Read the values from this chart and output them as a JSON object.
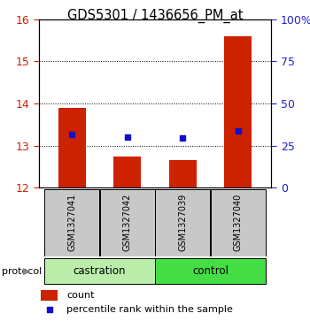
{
  "title": "GDS5301 / 1436656_PM_at",
  "samples": [
    "GSM1327041",
    "GSM1327042",
    "GSM1327039",
    "GSM1327040"
  ],
  "bar_bottom": 12,
  "bar_tops": [
    13.9,
    12.75,
    12.65,
    15.6
  ],
  "percentile_values": [
    13.27,
    13.2,
    13.18,
    13.35
  ],
  "ylim_left": [
    12,
    16
  ],
  "ylim_right": [
    0,
    100
  ],
  "yticks_left": [
    12,
    13,
    14,
    15,
    16
  ],
  "yticks_right": [
    0,
    25,
    50,
    75,
    100
  ],
  "ytick_labels_right": [
    "0",
    "25",
    "50",
    "75",
    "100%"
  ],
  "bar_color": "#CC2200",
  "dot_color": "#1111CC",
  "left_tick_color": "#CC2200",
  "right_tick_color": "#2222CC",
  "sample_box_color": "#C8C8C8",
  "castration_color": "#BBEEAA",
  "control_color": "#55DD55",
  "legend_count_color": "#CC2200",
  "legend_dot_color": "#1111CC",
  "grid_dotted_color": "#555555",
  "castration_group_color": "#AAEEBB",
  "control_group_color": "#44DD44"
}
